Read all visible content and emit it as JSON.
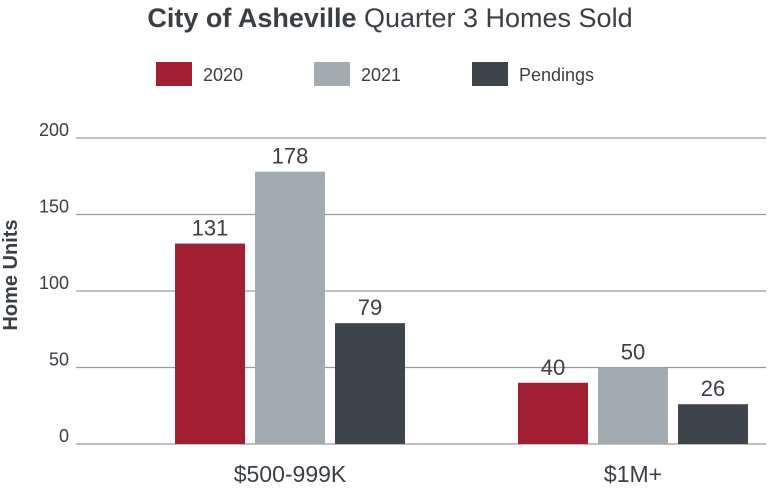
{
  "chart_data": {
    "type": "bar",
    "title_bold": "City of Asheville",
    "title_rest": " Quarter 3 Homes Sold",
    "xlabel": "",
    "ylabel": "Home Units",
    "ylim": [
      0,
      200
    ],
    "yticks": [
      0,
      50,
      100,
      150,
      200
    ],
    "categories": [
      "$500-999K",
      "$1M+"
    ],
    "series": [
      {
        "name": "2020",
        "color": "#a01f33",
        "values": [
          131,
          40
        ]
      },
      {
        "name": "2021",
        "color": "#a3abb2",
        "values": [
          178,
          50
        ]
      },
      {
        "name": "Pendings",
        "color": "#3d444b",
        "values": [
          79,
          26
        ]
      }
    ],
    "legend_position": "top",
    "grid": true,
    "gridline_color": "#9a9a9a"
  }
}
